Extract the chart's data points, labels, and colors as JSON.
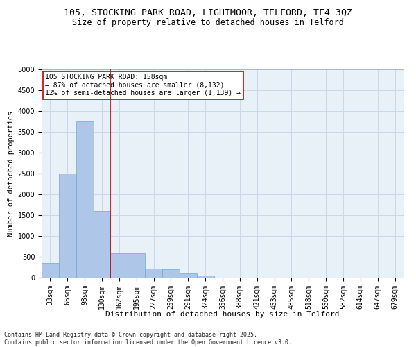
{
  "title_line1": "105, STOCKING PARK ROAD, LIGHTMOOR, TELFORD, TF4 3QZ",
  "title_line2": "Size of property relative to detached houses in Telford",
  "xlabel": "Distribution of detached houses by size in Telford",
  "ylabel": "Number of detached properties",
  "categories": [
    "33sqm",
    "65sqm",
    "98sqm",
    "130sqm",
    "162sqm",
    "195sqm",
    "227sqm",
    "259sqm",
    "291sqm",
    "324sqm",
    "356sqm",
    "388sqm",
    "421sqm",
    "453sqm",
    "485sqm",
    "518sqm",
    "550sqm",
    "582sqm",
    "614sqm",
    "647sqm",
    "679sqm"
  ],
  "values": [
    350,
    2500,
    3750,
    1600,
    580,
    580,
    220,
    200,
    100,
    50,
    0,
    0,
    0,
    0,
    0,
    0,
    0,
    0,
    0,
    0,
    0
  ],
  "bar_color": "#aec6e8",
  "bar_edgecolor": "#6aaad4",
  "vline_color": "#cc0000",
  "vline_pos": 3.5,
  "annotation_text": "105 STOCKING PARK ROAD: 158sqm\n← 87% of detached houses are smaller (8,132)\n12% of semi-detached houses are larger (1,139) →",
  "annotation_box_color": "#cc0000",
  "ylim": [
    0,
    5000
  ],
  "yticks": [
    0,
    500,
    1000,
    1500,
    2000,
    2500,
    3000,
    3500,
    4000,
    4500,
    5000
  ],
  "grid_color": "#c8d8e8",
  "bg_color": "#e8f0f8",
  "footer": "Contains HM Land Registry data © Crown copyright and database right 2025.\nContains public sector information licensed under the Open Government Licence v3.0.",
  "title_fontsize": 9.5,
  "subtitle_fontsize": 8.5,
  "xlabel_fontsize": 8,
  "ylabel_fontsize": 7.5,
  "tick_fontsize": 7,
  "annotation_fontsize": 7,
  "footer_fontsize": 6
}
